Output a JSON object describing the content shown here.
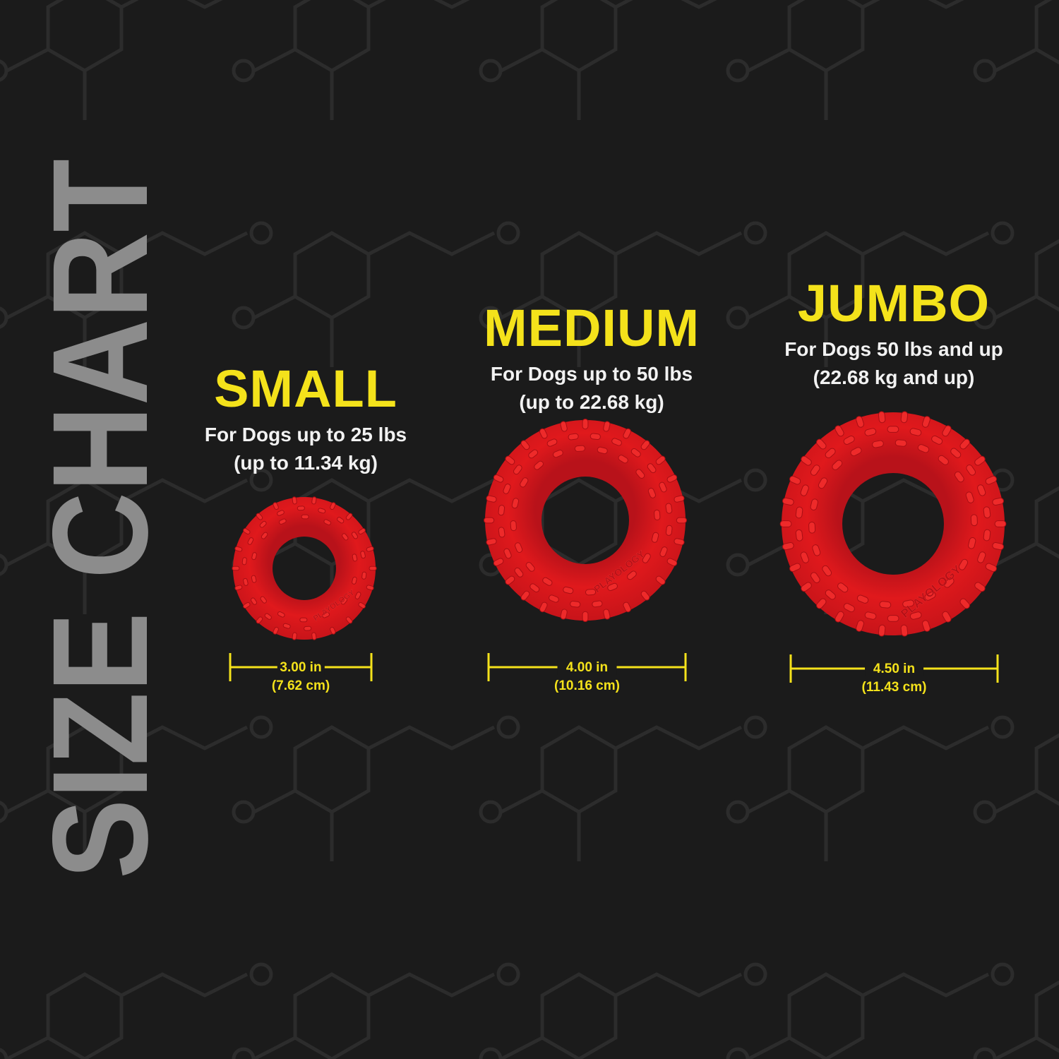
{
  "title": "SIZE CHART",
  "colors": {
    "background": "#1b1b1b",
    "accent": "#f4e21b",
    "title_gray": "#8c8c8c",
    "toy_red": "#e0191c",
    "pattern": "#2c2c2c"
  },
  "sizes": [
    {
      "name": "SMALL",
      "desc_line1": "For Dogs up to 25 lbs",
      "desc_line2": "(up to 11.34 kg)",
      "dim_in": "3.00 in",
      "dim_cm": "(7.62 cm)"
    },
    {
      "name": "MEDIUM",
      "desc_line1": "For Dogs up to 50 lbs",
      "desc_line2": "(up to 22.68 kg)",
      "dim_in": "4.00 in",
      "dim_cm": "(10.16 cm)"
    },
    {
      "name": "JUMBO",
      "desc_line1": "For Dogs 50 lbs and up",
      "desc_line2": "(22.68 kg and up)",
      "dim_in": "4.50 in",
      "dim_cm": "(11.43 cm)"
    }
  ],
  "product": {
    "icon": "red-tire-ring-toy",
    "embossed_brand": "PLAYOLOGY"
  }
}
